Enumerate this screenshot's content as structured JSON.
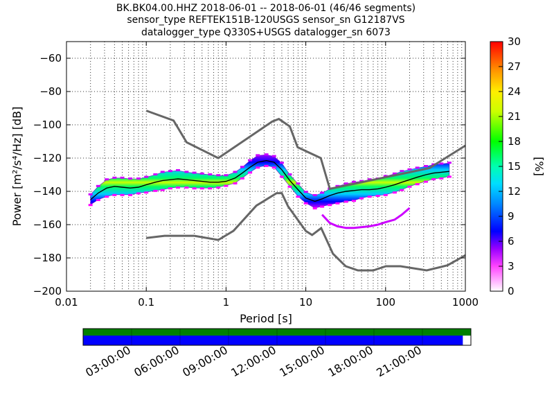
{
  "chart_data": {
    "type": "heatmap",
    "title_lines": [
      "BK.BK04.00.HHZ   2018-06-01 -- 2018-06-01  (46/46 segments)",
      "sensor_type REFTEK151B-120USGS sensor_sn G12187VS",
      "datalogger_type Q330S+USGS datalogger_sn 6073"
    ],
    "xlabel": "Period [s]",
    "ylabel": "Power [m²/s⁴/Hz] [dB]",
    "x_scale": "log",
    "xlim": [
      0.01,
      1000
    ],
    "ylim": [
      -200,
      -50
    ],
    "x_ticks": [
      {
        "value": 0.01,
        "label": "0.01"
      },
      {
        "value": 0.1,
        "label": "0.1"
      },
      {
        "value": 1,
        "label": "1"
      },
      {
        "value": 10,
        "label": "10"
      },
      {
        "value": 100,
        "label": "100"
      },
      {
        "value": 1000,
        "label": "1000"
      }
    ],
    "y_ticks": [
      {
        "value": -60,
        "label": "−60"
      },
      {
        "value": -80,
        "label": "−80"
      },
      {
        "value": -100,
        "label": "−100"
      },
      {
        "value": -120,
        "label": "−120"
      },
      {
        "value": -140,
        "label": "−140"
      },
      {
        "value": -160,
        "label": "−160"
      },
      {
        "value": -180,
        "label": "−180"
      },
      {
        "value": -200,
        "label": "−200"
      }
    ],
    "grid": true,
    "colorbar": {
      "label": "[%]",
      "range": [
        0,
        30
      ],
      "ticks": [
        "0",
        "3",
        "6",
        "9",
        "12",
        "15",
        "18",
        "21",
        "24",
        "27",
        "30"
      ]
    },
    "new_high_noise_model": {
      "x": [
        0.1,
        0.22,
        0.32,
        0.8,
        3.8,
        4.6,
        6.3,
        7.9,
        15.4,
        20,
        354.8,
        1000
      ],
      "y": [
        -91.5,
        -97.4,
        -110.5,
        -120,
        -98,
        -96.5,
        -101,
        -113.5,
        -120,
        -138.5,
        -126,
        -112.5
      ]
    },
    "new_low_noise_model": {
      "x": [
        0.1,
        0.17,
        0.4,
        0.8,
        1.24,
        2.4,
        4.3,
        5,
        6,
        10,
        12,
        15.6,
        21.9,
        31.6,
        45,
        70,
        101,
        154,
        328,
        600,
        1000
      ],
      "y": [
        -168,
        -166.7,
        -166.7,
        -169.2,
        -163.7,
        -148.6,
        -141.1,
        -141.1,
        -149,
        -163.8,
        -166.2,
        -162.1,
        -177.5,
        -185,
        -187.5,
        -187.5,
        -185,
        -185,
        -187.5,
        -184.4,
        -178.4
      ]
    },
    "median_psd": {
      "x": [
        0.02,
        0.025,
        0.032,
        0.04,
        0.05,
        0.063,
        0.08,
        0.1,
        0.13,
        0.16,
        0.2,
        0.25,
        0.32,
        0.4,
        0.5,
        0.63,
        0.8,
        1.0,
        1.3,
        1.6,
        2.0,
        2.5,
        3.2,
        4.0,
        5.0,
        6.3,
        8.0,
        10,
        13,
        16,
        20,
        25,
        32,
        40,
        50,
        63,
        80,
        100,
        130,
        160,
        200,
        250,
        320,
        400,
        500,
        630
      ],
      "y": [
        -145,
        -141,
        -138,
        -137,
        -137.5,
        -138,
        -137.5,
        -136,
        -134.5,
        -133.5,
        -133,
        -132.5,
        -133,
        -133.5,
        -134,
        -134.5,
        -134.5,
        -134,
        -132,
        -129,
        -125.5,
        -122.5,
        -121.5,
        -122.5,
        -127,
        -133.5,
        -139,
        -144,
        -146,
        -144.5,
        -142.5,
        -141,
        -140,
        -139.5,
        -139,
        -139,
        -138.5,
        -137.5,
        -136,
        -134.5,
        -133,
        -131.5,
        -130,
        -129,
        -128.5,
        -128
      ]
    },
    "psd_band": {
      "x": [
        0.02,
        0.025,
        0.032,
        0.04,
        0.05,
        0.063,
        0.08,
        0.1,
        0.13,
        0.16,
        0.2,
        0.25,
        0.32,
        0.4,
        0.5,
        0.63,
        0.8,
        1.0,
        1.3,
        1.6,
        2.0,
        2.5,
        3.2,
        4.0,
        5.0,
        6.3,
        8.0,
        10,
        13,
        16,
        20,
        25,
        32,
        40,
        50,
        63,
        80,
        100,
        130,
        160,
        200,
        250,
        320,
        400,
        500,
        630
      ],
      "y_low": [
        -148,
        -145,
        -143,
        -142,
        -142,
        -142,
        -141,
        -140.5,
        -139.5,
        -139,
        -138,
        -137.5,
        -137.5,
        -138,
        -138,
        -138,
        -137.5,
        -136.5,
        -135,
        -132,
        -128.5,
        -125.5,
        -124.5,
        -125.5,
        -131,
        -137,
        -143,
        -147,
        -150,
        -149,
        -148,
        -147,
        -146,
        -145.5,
        -144,
        -143,
        -142.5,
        -142,
        -140.5,
        -139,
        -137,
        -135.5,
        -134,
        -132.5,
        -132,
        -131
      ],
      "y_high": [
        -142,
        -137,
        -133,
        -132,
        -132,
        -132.5,
        -132.5,
        -131.5,
        -130,
        -128.5,
        -128,
        -127.5,
        -128.5,
        -129,
        -129.5,
        -130,
        -130.5,
        -130.5,
        -128.5,
        -125.5,
        -121.5,
        -118.5,
        -118,
        -119,
        -123,
        -130,
        -135.5,
        -140.5,
        -142.5,
        -141,
        -138.5,
        -137,
        -135.5,
        -134.5,
        -134,
        -133,
        -132.5,
        -131,
        -129.5,
        -128,
        -127,
        -126,
        -125,
        -124,
        -123.5,
        -123
      ]
    },
    "outlier_curve": {
      "x": [
        16,
        20,
        25,
        32,
        40,
        50,
        63,
        80,
        100,
        130,
        160,
        200
      ],
      "y": [
        -154,
        -159,
        -161,
        -162,
        -162,
        -161.5,
        -161,
        -160,
        -158.5,
        -157,
        -154,
        -150
      ]
    },
    "time_axis": {
      "tick_labels": [
        "03:00:00",
        "06:00:00",
        "09:00:00",
        "12:00:00",
        "15:00:00",
        "18:00:00",
        "21:00:00"
      ],
      "range_hours": [
        0,
        24
      ],
      "data_coverage_hours": [
        0,
        24
      ],
      "psd_coverage_hours": [
        0,
        23.5
      ],
      "data_color": "#008000",
      "psd_color": "#0000ff"
    }
  }
}
